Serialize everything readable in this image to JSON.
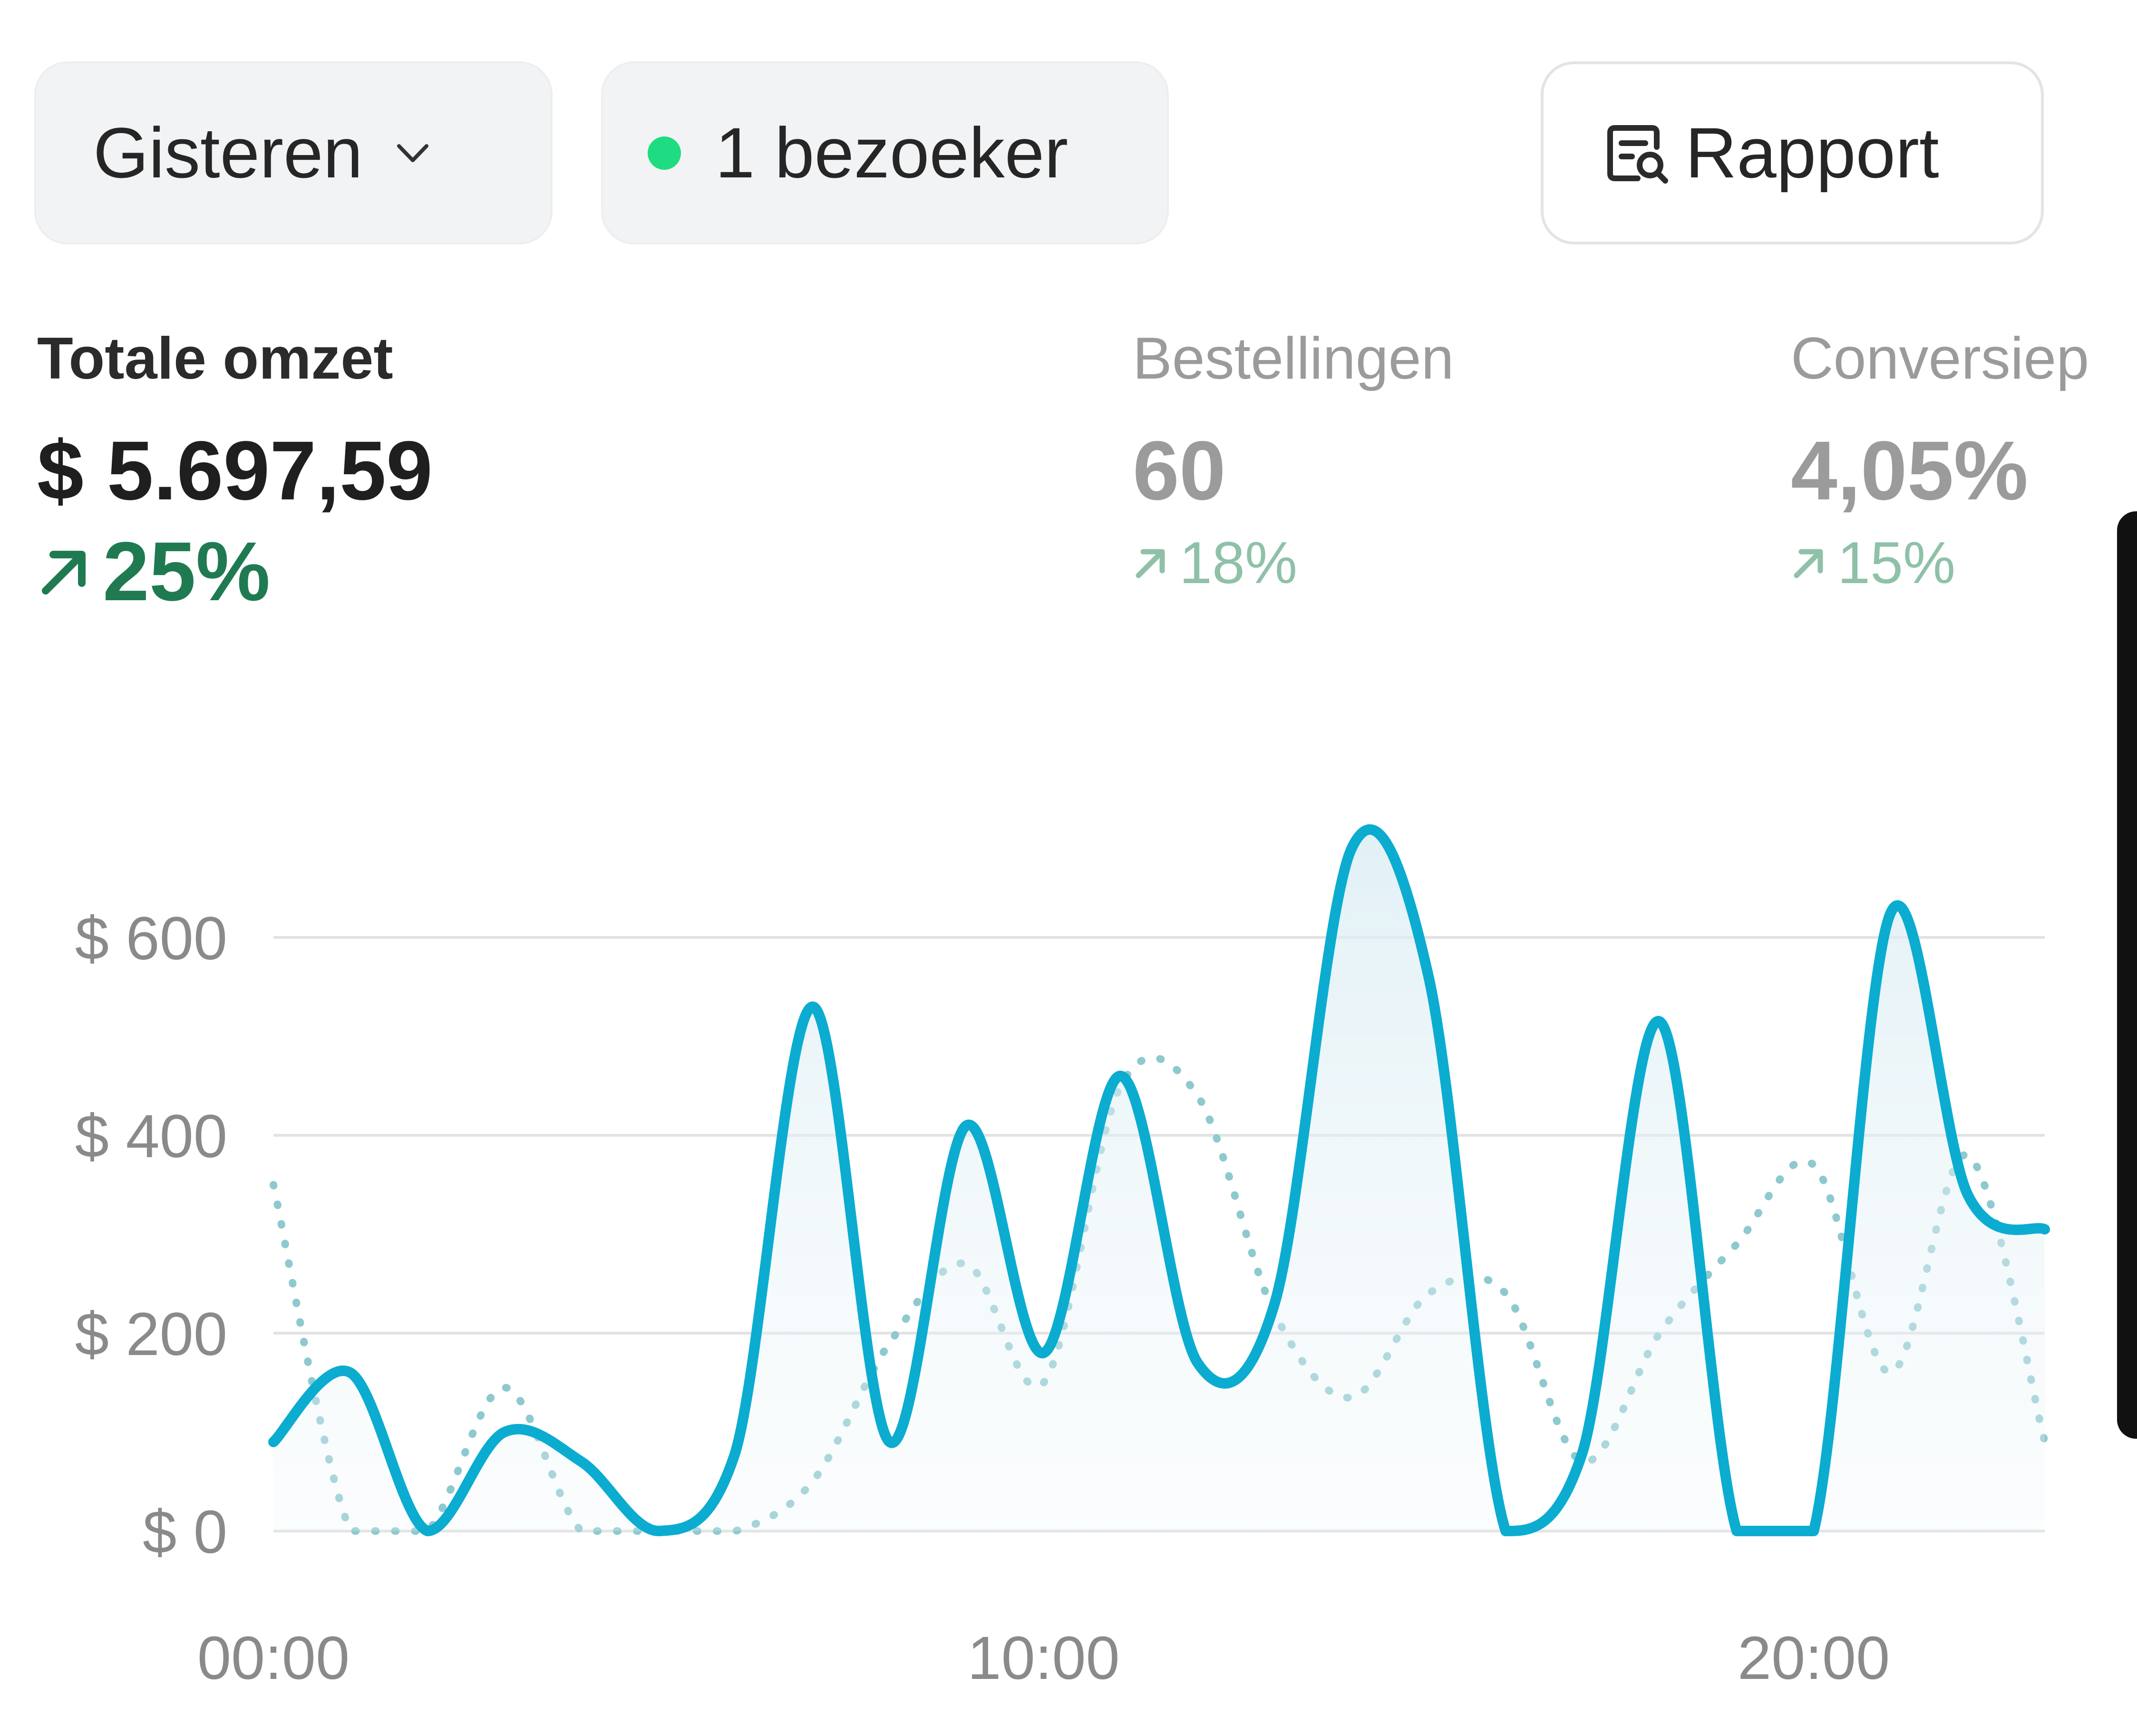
{
  "toolbar": {
    "date_range": "Gisteren",
    "visitors": "1 bezoeker",
    "live_color": "#1fdc82",
    "report_label": "Rapport",
    "icons": [
      "chevron-down-icon",
      "report-search-icon"
    ]
  },
  "metrics": [
    {
      "label": "Totale omzet",
      "value": "$ 5.697,59",
      "change": "25%",
      "direction": "up",
      "selected": true
    },
    {
      "label": "Bestellingen",
      "value": "60",
      "change": "18%",
      "direction": "up",
      "selected": false
    },
    {
      "label": "Conversiep",
      "value": "4,05%",
      "change": "15%",
      "direction": "up",
      "selected": false
    }
  ],
  "colors": {
    "accent": "#0bacd0",
    "positive": "#1f7a52",
    "comparison": "#8ec9cf"
  },
  "chart_data": {
    "type": "line",
    "x_tick_labels": [
      "00:00",
      "10:00",
      "20:00"
    ],
    "y_tick_labels": [
      "$ 0",
      "$ 200",
      "$ 400",
      "$ 600"
    ],
    "ylim": [
      0,
      700
    ],
    "xlim": [
      0,
      23
    ],
    "grid": true,
    "series": [
      {
        "style": "solid",
        "color": "#0bacd0",
        "fill": true,
        "x": [
          0,
          1,
          2,
          3,
          4,
          5,
          6,
          7,
          8,
          9,
          10,
          11,
          12,
          13,
          14,
          15,
          16,
          17,
          18,
          19,
          20,
          21,
          22,
          23
        ],
        "values": [
          90,
          160,
          0,
          100,
          70,
          0,
          80,
          530,
          90,
          410,
          180,
          460,
          170,
          230,
          690,
          560,
          0,
          80,
          515,
          0,
          0,
          625,
          340,
          305
        ]
      },
      {
        "style": "dashed",
        "color": "#8ec9cf",
        "fill": false,
        "x": [
          0,
          1,
          2,
          3,
          4,
          5,
          6,
          7,
          8,
          9,
          10,
          11,
          12,
          13,
          14,
          15,
          16,
          17,
          18,
          19,
          20,
          21,
          22,
          23
        ],
        "values": [
          350,
          0,
          0,
          145,
          0,
          0,
          0,
          50,
          190,
          270,
          150,
          450,
          440,
          220,
          135,
          240,
          240,
          70,
          200,
          290,
          370,
          160,
          380,
          90
        ]
      }
    ]
  }
}
